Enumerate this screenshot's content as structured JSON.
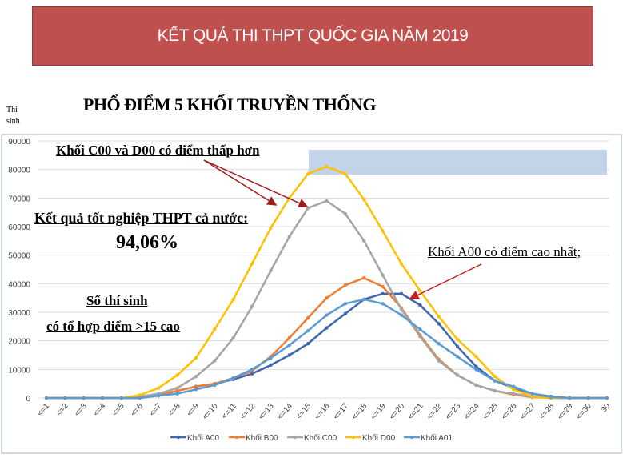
{
  "banner": {
    "title": "KẾT QUẢ THI THPT QUỐC GIA NĂM 2019",
    "color": "#c0504d"
  },
  "chart_data": {
    "type": "line",
    "title": "PHỔ ĐIỂM 5 KHỐI TRUYỀN THỐNG",
    "ylabel": "Thi sinh",
    "xlabel": "",
    "ylim": [
      0,
      90000
    ],
    "yticks": [
      0,
      10000,
      20000,
      30000,
      40000,
      50000,
      60000,
      70000,
      80000,
      90000
    ],
    "grid": true,
    "legend": "bottom",
    "categories": [
      "<=1",
      "<=2",
      "<=3",
      "<=4",
      "<=5",
      "<=6",
      "<=7",
      "<=8",
      "<=9",
      "<=10",
      "<=11",
      "<=12",
      "<=13",
      "<=14",
      "<=15",
      "<=16",
      "<=17",
      "<=18",
      "<=19",
      "<=20",
      "<=21",
      "<=22",
      "<=23",
      "<=24",
      "<=25",
      "<=26",
      "<=27",
      "<=28",
      "<=29",
      "<=30",
      "30"
    ],
    "series": [
      {
        "name": "Khối A00",
        "color": "#3f67ad",
        "values": [
          0,
          0,
          0,
          0,
          0,
          0,
          1000,
          2500,
          4000,
          5000,
          6500,
          8500,
          11500,
          15000,
          19000,
          24500,
          29500,
          34500,
          36500,
          36500,
          32500,
          26000,
          18000,
          11000,
          6000,
          3500,
          1500,
          500,
          0,
          0,
          0
        ]
      },
      {
        "name": "Khối B00",
        "color": "#ed7d31",
        "values": [
          0,
          0,
          0,
          0,
          0,
          0,
          1000,
          2500,
          4000,
          5000,
          7000,
          9500,
          14500,
          21000,
          28000,
          35000,
          39500,
          42000,
          39000,
          31500,
          22000,
          13500,
          8000,
          4500,
          2500,
          1200,
          300,
          0,
          0,
          0,
          0
        ]
      },
      {
        "name": "Khối C00",
        "color": "#a5a5a5",
        "values": [
          0,
          0,
          0,
          0,
          0,
          500,
          1500,
          3500,
          7500,
          13000,
          21000,
          32000,
          44500,
          56500,
          66500,
          69000,
          64500,
          55000,
          43000,
          31000,
          21500,
          13000,
          8000,
          4500,
          2500,
          1500,
          500,
          0,
          0,
          0,
          0
        ]
      },
      {
        "name": "Khối D00",
        "color": "#ffc000",
        "values": [
          0,
          0,
          0,
          0,
          0,
          1000,
          3500,
          8000,
          14000,
          24000,
          34500,
          47000,
          59500,
          70000,
          78500,
          81000,
          78500,
          69500,
          58500,
          47000,
          37500,
          28500,
          20500,
          14500,
          7500,
          3000,
          500,
          0,
          0,
          0,
          0
        ]
      },
      {
        "name": "Khối A01",
        "color": "#5b9bd5",
        "values": [
          0,
          0,
          0,
          0,
          0,
          0,
          800,
          1500,
          3000,
          4500,
          7000,
          10000,
          14000,
          18500,
          23500,
          29000,
          33000,
          34500,
          33000,
          29000,
          24000,
          19000,
          14500,
          10000,
          6000,
          4000,
          1500,
          300,
          0,
          0,
          0
        ]
      }
    ],
    "highlight_band_color": "#b8cce4"
  },
  "annotations": {
    "c00_d00": "Khối  C00 và D00 có điểm  thấp hơn",
    "graduation_label": "Kết quả  tốt nghiệp THPT cả nước:",
    "graduation_rate": "94,06%",
    "count_line1": "Số thí sinh ",
    "count_line2": "có tổ hợp  điểm >15 cao",
    "a00": "Khối A00 có điểm cao nhất;",
    "arrow_color": "#a01c1c"
  }
}
